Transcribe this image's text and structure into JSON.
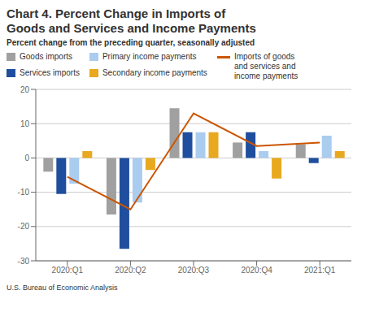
{
  "chart_data": {
    "type": "bar",
    "title": "Chart 4. Percent Change in Imports of\nGoods and Services and Income Payments",
    "subtitle": "Percent change from the preceding quarter, seasonally adjusted",
    "annotations": [
      "U.S. Bureau of Economic Analysis"
    ],
    "categories": [
      "2020:Q1",
      "2020:Q2",
      "2020:Q3",
      "2020:Q4",
      "2021:Q1"
    ],
    "series": [
      {
        "name": "Goods imports",
        "type": "bar",
        "color": "#a0a0a0",
        "values": [
          -4.0,
          -16.5,
          14.5,
          4.5,
          4.0
        ]
      },
      {
        "name": "Services imports",
        "type": "bar",
        "color": "#1f4e9e",
        "values": [
          -10.5,
          -26.5,
          7.5,
          7.5,
          -1.5
        ]
      },
      {
        "name": "Primary income payments",
        "type": "bar",
        "color": "#aaccee",
        "values": [
          -7.5,
          -13.0,
          7.5,
          2.0,
          6.5
        ]
      },
      {
        "name": "Secondary income payments",
        "type": "bar",
        "color": "#e8a820",
        "values": [
          2.0,
          -3.5,
          7.5,
          -6.0,
          2.0
        ]
      },
      {
        "name": "Imports of goods\nand services and\nincome payments",
        "type": "line",
        "color": "#cc5500",
        "values": [
          -5.5,
          -15.0,
          13.0,
          3.5,
          4.5
        ]
      }
    ],
    "ylim": [
      -30,
      20
    ],
    "yticks": [
      -30,
      -20,
      -10,
      0,
      10,
      20
    ],
    "grid": true
  }
}
